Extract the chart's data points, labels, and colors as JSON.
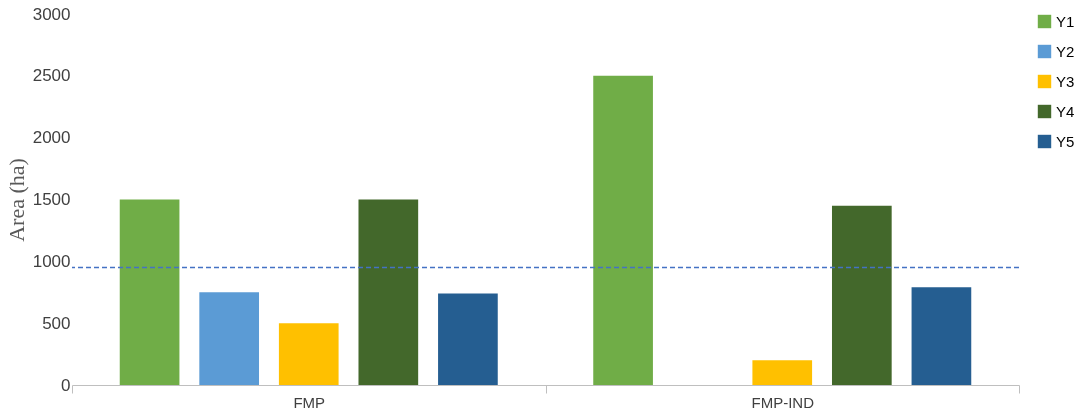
{
  "chart_data": {
    "type": "bar",
    "ylabel": "Area (ha)",
    "categories": [
      "FMP",
      "FMP-IND"
    ],
    "series": [
      {
        "name": "Y1",
        "color": "#70ad47",
        "values": [
          1500,
          2500
        ]
      },
      {
        "name": "Y2",
        "color": "#5b9bd5",
        "values": [
          750,
          null
        ]
      },
      {
        "name": "Y3",
        "color": "#ffc000",
        "values": [
          500,
          200
        ]
      },
      {
        "name": "Y4",
        "color": "#43682b",
        "values": [
          1500,
          1450
        ]
      },
      {
        "name": "Y5",
        "color": "#255e91",
        "values": [
          740,
          790
        ]
      }
    ],
    "ylim": [
      0,
      3000
    ],
    "yticks": [
      0,
      500,
      1000,
      1500,
      2000,
      2500,
      3000
    ],
    "grid": false,
    "legend": "right",
    "ref_lines": [
      {
        "axis": "y",
        "value": 950,
        "label": null,
        "color": "#4472c4",
        "line_style": "dashed"
      }
    ]
  }
}
